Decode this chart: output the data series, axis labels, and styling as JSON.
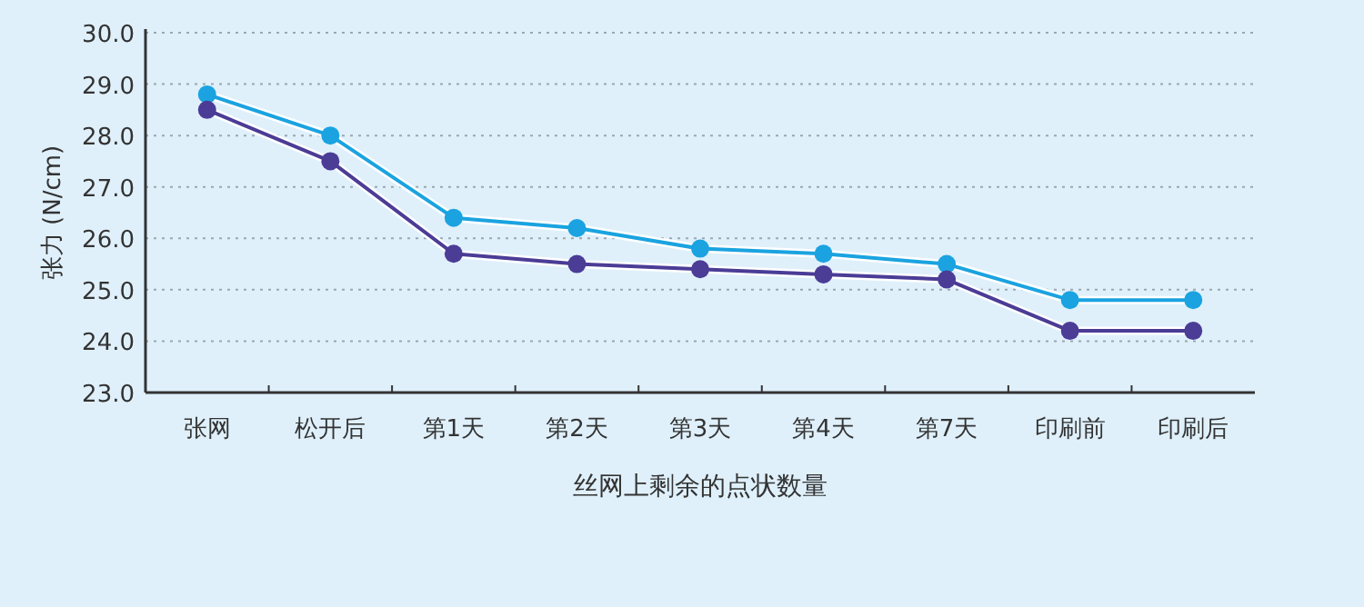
{
  "chart_data": {
    "type": "line",
    "xlabel": "丝网上剩余的点状数量",
    "ylabel": "张力 (N/cm)",
    "categories": [
      "张网",
      "松开后",
      "第1天",
      "第2天",
      "第3天",
      "第4天",
      "第7天",
      "印刷前",
      "印刷后"
    ],
    "series": [
      {
        "color": "#1aa3e0",
        "values": [
          28.8,
          28.0,
          26.4,
          26.2,
          25.8,
          25.7,
          25.5,
          24.8,
          24.8
        ]
      },
      {
        "color": "#4b3c96",
        "values": [
          28.5,
          27.5,
          25.7,
          25.5,
          25.4,
          25.3,
          25.2,
          24.2,
          24.2
        ]
      }
    ],
    "ylim": [
      23,
      30
    ],
    "yticks": [
      {
        "value": 23,
        "label": "23.0"
      },
      {
        "value": 24,
        "label": "24.0"
      },
      {
        "value": 25,
        "label": "25.0"
      },
      {
        "value": 26,
        "label": "26.0"
      },
      {
        "value": 27,
        "label": "27.0"
      },
      {
        "value": 28,
        "label": "28.0"
      },
      {
        "value": 29,
        "label": "29.0"
      },
      {
        "value": 30,
        "label": "30.0"
      }
    ],
    "grid": "y",
    "marker": "circle",
    "line_style": "solid"
  }
}
